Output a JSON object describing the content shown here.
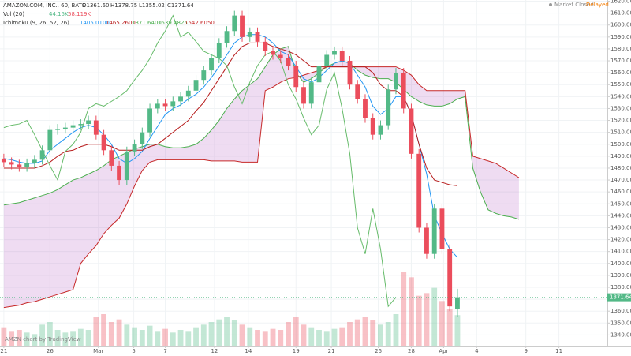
{
  "chart_data": {
    "type": "candlestick",
    "header": {
      "symbol": "AMAZON.COM, INC., 60, BATS",
      "ohlc": [
        "O1361.60",
        "H1378.75",
        "L1355.02",
        "C1371.64"
      ],
      "volume_study": "Vol (20)",
      "volume_values": [
        "44.15K",
        "58.119K"
      ],
      "ichimoku_study": "Ichimoku (9, 26, 52, 26)",
      "ichimoku_values": [
        "1405.0100",
        "1465.2600",
        "1371.6400",
        "1539.4825",
        "1542.6050"
      ]
    },
    "status": [
      "Market Closed",
      "Delayed"
    ],
    "watermark": "AMZN chart by TradingView",
    "last_price_label": "1371.64",
    "xlim": [
      -0.5,
      78.5
    ],
    "xticks": [
      {
        "value": 0,
        "label": "21"
      },
      {
        "value": 6,
        "label": "26"
      },
      {
        "value": 12.3,
        "label": "Mar"
      },
      {
        "value": 16.9,
        "label": "5"
      },
      {
        "value": 21,
        "label": "7"
      },
      {
        "value": 27.4,
        "label": "12"
      },
      {
        "value": 31.8,
        "label": "14"
      },
      {
        "value": 38,
        "label": "19"
      },
      {
        "value": 42.6,
        "label": "21"
      },
      {
        "value": 48.7,
        "label": "26"
      },
      {
        "value": 53,
        "label": "28"
      },
      {
        "value": 57.2,
        "label": "Apr"
      },
      {
        "value": 61.5,
        "label": "4"
      },
      {
        "value": 67.9,
        "label": "9"
      },
      {
        "value": 72.2,
        "label": "11"
      }
    ],
    "ylim": [
      1331,
      1621
    ],
    "yticks": [
      {
        "value": 1340,
        "label": "1340.00"
      },
      {
        "value": 1350,
        "label": "1350.00"
      },
      {
        "value": 1360,
        "label": "1360.00"
      },
      {
        "value": 1370,
        "label": "1370.00"
      },
      {
        "value": 1380,
        "label": "1380.00"
      },
      {
        "value": 1390,
        "label": "1390.00"
      },
      {
        "value": 1400,
        "label": "1400.00"
      },
      {
        "value": 1410,
        "label": "1410.00"
      },
      {
        "value": 1420,
        "label": "1420.00"
      },
      {
        "value": 1430,
        "label": "1430.00"
      },
      {
        "value": 1440,
        "label": "1440.00"
      },
      {
        "value": 1450,
        "label": "1450.00"
      },
      {
        "value": 1460,
        "label": "1460.00"
      },
      {
        "value": 1470,
        "label": "1470.00"
      },
      {
        "value": 1480,
        "label": "1480.00"
      },
      {
        "value": 1490,
        "label": "1490.00"
      },
      {
        "value": 1500,
        "label": "1500.00"
      },
      {
        "value": 1510,
        "label": "1510.00"
      },
      {
        "value": 1520,
        "label": "1520.00"
      },
      {
        "value": 1530,
        "label": "1530.00"
      },
      {
        "value": 1540,
        "label": "1540.00"
      },
      {
        "value": 1550,
        "label": "1550.00"
      },
      {
        "value": 1560,
        "label": "1560.00"
      },
      {
        "value": 1570,
        "label": "1570.00"
      },
      {
        "value": 1580,
        "label": "1580.00"
      },
      {
        "value": 1590,
        "label": "1590.00"
      },
      {
        "value": 1600,
        "label": "1600.00"
      },
      {
        "value": 1610,
        "label": "1610.00"
      },
      {
        "value": 1620,
        "label": "1620.00"
      }
    ],
    "grid": true,
    "up_color": "#53b987",
    "down_color": "#eb4d5c",
    "open": [
      1488,
      1485,
      1483,
      1481,
      1484,
      1487,
      1495,
      1512,
      1513,
      1514,
      1516,
      1517,
      1520,
      1508,
      1495,
      1482,
      1470,
      1494,
      1500,
      1510,
      1530,
      1534,
      1532,
      1536,
      1540,
      1545,
      1554,
      1562,
      1572,
      1585,
      1595,
      1608,
      1590,
      1594,
      1586,
      1578,
      1575,
      1572,
      1566,
      1548,
      1534,
      1552,
      1566,
      1575,
      1578,
      1570,
      1550,
      1538,
      1522,
      1508,
      1516,
      1546,
      1560,
      1530,
      1492,
      1430,
      1408,
      1446,
      1412,
      1361.6
    ],
    "high": [
      1492,
      1489,
      1487,
      1488,
      1491,
      1499,
      1516,
      1517,
      1518,
      1520,
      1521,
      1524,
      1524,
      1512,
      1499,
      1486,
      1498,
      1504,
      1514,
      1534,
      1538,
      1538,
      1540,
      1544,
      1549,
      1558,
      1566,
      1576,
      1589,
      1599,
      1612,
      1612,
      1598,
      1598,
      1590,
      1582,
      1579,
      1576,
      1570,
      1552,
      1556,
      1570,
      1579,
      1582,
      1582,
      1574,
      1554,
      1542,
      1526,
      1520,
      1550,
      1564,
      1564,
      1534,
      1496,
      1434,
      1450,
      1450,
      1416,
      1378.75
    ],
    "low": [
      1481,
      1479,
      1477,
      1477,
      1480,
      1483,
      1491,
      1508,
      1509,
      1510,
      1512,
      1513,
      1504,
      1491,
      1478,
      1466,
      1466,
      1490,
      1496,
      1506,
      1526,
      1528,
      1528,
      1532,
      1536,
      1541,
      1550,
      1558,
      1568,
      1581,
      1591,
      1586,
      1586,
      1582,
      1574,
      1571,
      1568,
      1562,
      1544,
      1530,
      1530,
      1548,
      1562,
      1571,
      1566,
      1546,
      1534,
      1518,
      1504,
      1504,
      1512,
      1542,
      1526,
      1488,
      1426,
      1404,
      1404,
      1408,
      1360,
      1355.02
    ],
    "close": [
      1485,
      1483,
      1481,
      1484,
      1487,
      1495,
      1512,
      1513,
      1514,
      1516,
      1517,
      1520,
      1508,
      1495,
      1482,
      1470,
      1494,
      1500,
      1510,
      1530,
      1534,
      1532,
      1536,
      1540,
      1545,
      1554,
      1562,
      1572,
      1585,
      1595,
      1608,
      1590,
      1594,
      1586,
      1578,
      1575,
      1572,
      1566,
      1548,
      1534,
      1552,
      1566,
      1575,
      1578,
      1570,
      1550,
      1538,
      1522,
      1508,
      1516,
      1546,
      1560,
      1530,
      1492,
      1430,
      1408,
      1446,
      1412,
      1364,
      1371.64
    ],
    "volume": {
      "ylim": [
        0,
        150
      ],
      "values": [
        35,
        28,
        30,
        25,
        22,
        40,
        45,
        30,
        25,
        28,
        32,
        30,
        55,
        60,
        45,
        50,
        40,
        35,
        30,
        38,
        28,
        32,
        25,
        30,
        28,
        35,
        40,
        45,
        50,
        55,
        48,
        40,
        35,
        30,
        28,
        32,
        30,
        45,
        55,
        40,
        35,
        30,
        28,
        32,
        35,
        45,
        50,
        55,
        48,
        40,
        45,
        60,
        140,
        130,
        95,
        100,
        110,
        85,
        70,
        58.119
      ]
    },
    "cloud": {
      "fill": "rgba(156,39,176,0.16)",
      "a": {
        "color": "#4caf50",
        "values": [
          1449,
          1450,
          1451,
          1453,
          1455,
          1457,
          1459,
          1462,
          1466,
          1470,
          1472,
          1475,
          1478,
          1482,
          1487,
          1490,
          1493,
          1496,
          1498,
          1500,
          1500,
          1498,
          1497,
          1497,
          1498,
          1500,
          1505,
          1512,
          1520,
          1530,
          1538,
          1545,
          1550,
          1555,
          1565,
          1575,
          1580,
          1582,
          1560,
          1552,
          1555,
          1560,
          1565,
          1568,
          1570,
          1568,
          1562,
          1558,
          1556,
          1555,
          1555,
          1552,
          1546,
          1540,
          1536,
          1533,
          1532,
          1532,
          1534,
          1538,
          1540,
          1480,
          1460,
          1445,
          1442,
          1440,
          1439,
          1437
        ]
      },
      "b": {
        "color": "#c62828",
        "values": [
          1363,
          1364,
          1365,
          1367,
          1368,
          1370,
          1372,
          1374,
          1376,
          1378,
          1400,
          1408,
          1415,
          1425,
          1432,
          1438,
          1450,
          1465,
          1478,
          1485,
          1487,
          1487,
          1487,
          1487,
          1487,
          1487,
          1487,
          1486,
          1486,
          1486,
          1486,
          1485,
          1485,
          1485,
          1545,
          1548,
          1552,
          1555,
          1556,
          1558,
          1560,
          1562,
          1565,
          1565,
          1565,
          1565,
          1565,
          1565,
          1565,
          1565,
          1565,
          1565,
          1562,
          1558,
          1550,
          1545,
          1545,
          1545,
          1545,
          1545,
          1545,
          1490,
          1488,
          1486,
          1484,
          1480,
          1476,
          1472
        ]
      }
    },
    "lines": [
      {
        "color": "#2196f3",
        "values": [
          1488,
          1487,
          1485,
          1484,
          1484,
          1486,
          1495,
          1500,
          1505,
          1510,
          1514,
          1516,
          1514,
          1508,
          1500,
          1488,
          1484,
          1488,
          1494,
          1505,
          1515,
          1525,
          1530,
          1533,
          1538,
          1542,
          1548,
          1556,
          1565,
          1575,
          1585,
          1590,
          1592,
          1592,
          1590,
          1585,
          1578,
          1575,
          1565,
          1555,
          1552,
          1556,
          1562,
          1568,
          1570,
          1568,
          1558,
          1548,
          1532,
          1525,
          1530,
          1540,
          1540,
          1525,
          1500,
          1475,
          1440,
          1425,
          1412,
          1405.01
        ]
      },
      {
        "color": "#b71c1c",
        "values": [
          1480,
          1480,
          1480,
          1480,
          1480,
          1482,
          1485,
          1490,
          1494,
          1495,
          1498,
          1500,
          1500,
          1500,
          1498,
          1495,
          1495,
          1495,
          1495,
          1498,
          1500,
          1505,
          1510,
          1515,
          1520,
          1528,
          1535,
          1545,
          1555,
          1565,
          1575,
          1582,
          1585,
          1585,
          1585,
          1582,
          1580,
          1578,
          1575,
          1570,
          1565,
          1565,
          1565,
          1565,
          1565,
          1565,
          1565,
          1565,
          1560,
          1550,
          1545,
          1545,
          1540,
          1525,
          1500,
          1480,
          1470,
          1468,
          1466,
          1465.26
        ]
      },
      {
        "color": "#66bb6a",
        "values": [
          1514,
          1516,
          1517,
          1520,
          1508,
          1495,
          1482,
          1470,
          1494,
          1500,
          1510,
          1530,
          1534,
          1532,
          1536,
          1540,
          1545,
          1554,
          1562,
          1572,
          1585,
          1595,
          1608,
          1590,
          1594,
          1586,
          1578,
          1575,
          1572,
          1566,
          1548,
          1534,
          1552,
          1566,
          1575,
          1578,
          1570,
          1550,
          1538,
          1522,
          1508,
          1516,
          1546,
          1560,
          1530,
          1492,
          1430,
          1408,
          1446,
          1412,
          1364,
          1371.64,
          null,
          null,
          null,
          null,
          null,
          null,
          null,
          null
        ]
      }
    ]
  }
}
